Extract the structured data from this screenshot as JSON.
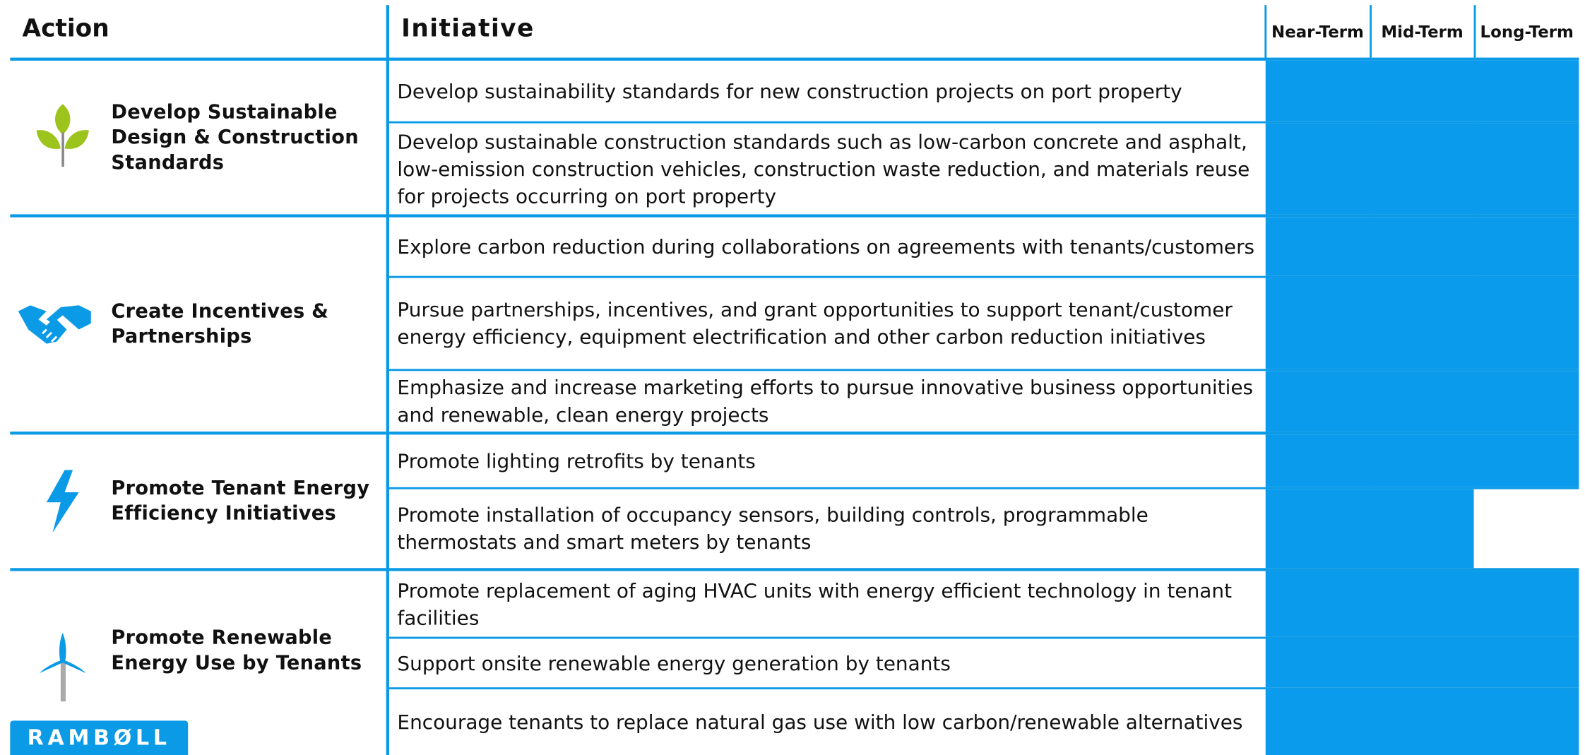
{
  "header": {
    "action": "Action",
    "initiative": "Initiative",
    "terms": [
      "Near-Term",
      "Mid-Term",
      "Long-Term"
    ]
  },
  "groups": [
    {
      "action": "Develop Sustainable Design & Construction Standards",
      "initiatives": [
        {
          "text": "Develop sustainability standards for new construction projects on port property",
          "timeline": [
            true,
            true,
            true
          ]
        },
        {
          "text": "Develop sustainable construction standards such as low-carbon concrete and asphalt, low-emission construction vehicles, construction waste reduction, and materials reuse for projects occurring on port property",
          "timeline": [
            true,
            true,
            true
          ]
        }
      ]
    },
    {
      "action": "Create Incentives & Partnerships",
      "initiatives": [
        {
          "text": "Explore carbon reduction during collaborations on agreements with tenants/customers",
          "timeline": [
            true,
            true,
            true
          ]
        },
        {
          "text": "Pursue partnerships, incentives, and grant opportunities to support tenant/customer energy efficiency, equipment electrification and other carbon reduction initiatives",
          "timeline": [
            true,
            true,
            true
          ]
        },
        {
          "text": "Emphasize and increase marketing efforts to pursue innovative business opportunities and renewable, clean energy projects",
          "timeline": [
            true,
            true,
            true
          ]
        }
      ]
    },
    {
      "action": "Promote Tenant Energy Efficiency Initiatives",
      "initiatives": [
        {
          "text": "Promote lighting retrofits by tenants",
          "timeline": [
            true,
            true,
            true
          ]
        },
        {
          "text": "Promote installation of occupancy sensors, building controls, programmable thermostats and smart meters by tenants",
          "timeline": [
            true,
            true,
            false
          ]
        }
      ]
    },
    {
      "action": "Promote Renewable Energy Use by Tenants",
      "initiatives": [
        {
          "text": "Promote replacement of aging HVAC units with energy efficient technology in tenant facilities",
          "timeline": [
            true,
            true,
            true
          ]
        },
        {
          "text": "Support onsite renewable energy generation by tenants",
          "timeline": [
            true,
            true,
            true
          ]
        },
        {
          "text": "Encourage tenants to replace natural gas use with  low carbon/renewable alternatives",
          "timeline": [
            true,
            true,
            true
          ]
        }
      ]
    }
  ],
  "logo": "RAMBØLL"
}
